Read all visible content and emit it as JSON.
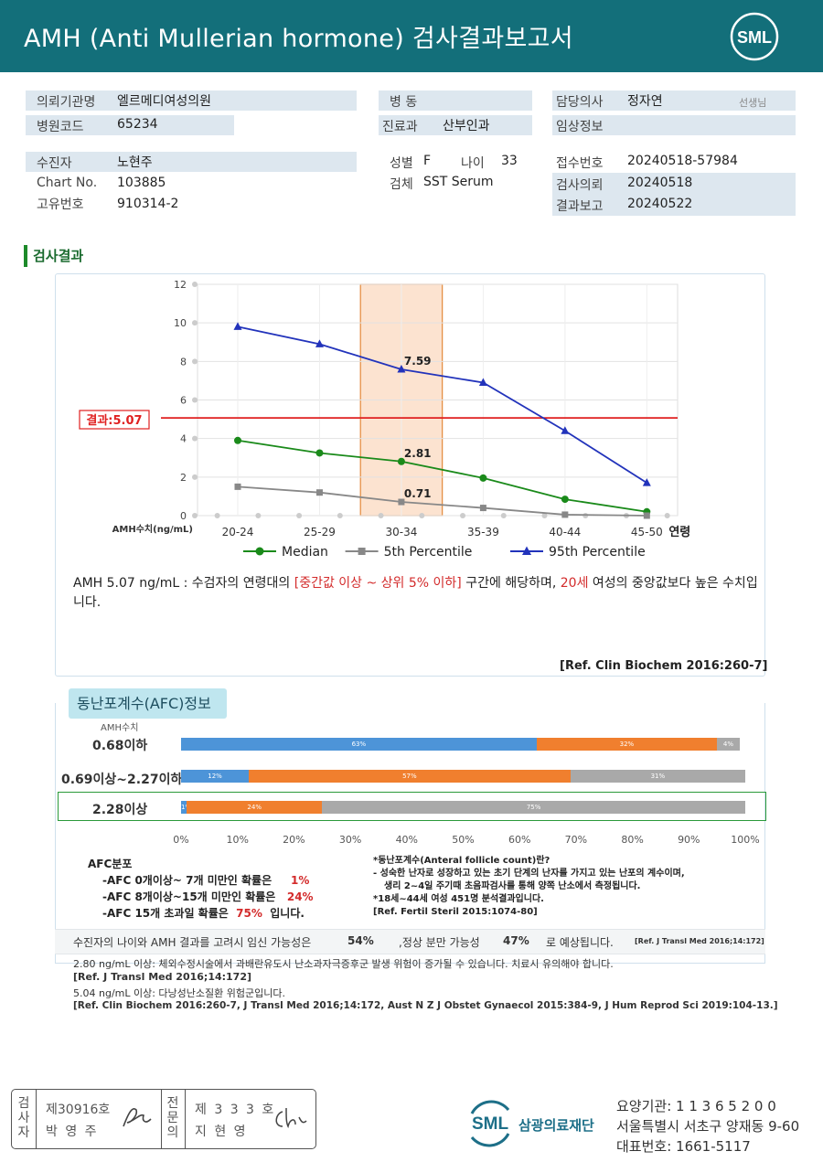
{
  "header": {
    "title": "AMH (Anti Mullerian hormone) 검사결과보고서",
    "logo_text": "SML"
  },
  "info": {
    "hospital_label": "의뢰기관명",
    "hospital_value": "엘르메디여성의원",
    "hospital_code_label": "병원코드",
    "hospital_code_value": "65234",
    "ward_label": "병 동",
    "dept_label": "진료과",
    "dept_value": "산부인과",
    "doctor_label": "담당의사",
    "doctor_value": "정자연",
    "doctor_suffix": "선생님",
    "clinical_label": "임상정보",
    "patient_label": "수진자",
    "patient_value": "노현주",
    "chart_label": "Chart No.",
    "chart_value": "103885",
    "id_label": "고유번호",
    "id_value": "910314-2",
    "sex_label": "성별",
    "sex_value": "F",
    "age_label": "나이",
    "age_value": "33",
    "specimen_label": "검체",
    "specimen_value": "SST Serum",
    "receipt_label": "접수번호",
    "receipt_value": "20240518-57984",
    "request_label": "검사의뢰",
    "request_value": "20240518",
    "report_label": "결과보고",
    "report_value": "20240522"
  },
  "section_title": "검사결과",
  "chart_data": {
    "type": "line",
    "categories": [
      "20-24",
      "25-29",
      "30-34",
      "35-39",
      "40-44",
      "45-50"
    ],
    "xlabel": "연령",
    "ylabel": "AMH수치(ng/mL)",
    "ylim": [
      0,
      12
    ],
    "yticks": [
      0,
      2,
      4,
      6,
      8,
      10,
      12
    ],
    "series": [
      {
        "name": "Median",
        "color": "#1a8a1a",
        "marker": "circle",
        "values": [
          3.9,
          3.25,
          2.81,
          1.95,
          0.85,
          0.2
        ]
      },
      {
        "name": "5th Percentile",
        "color": "#888888",
        "marker": "square",
        "values": [
          1.5,
          1.2,
          0.71,
          0.4,
          0.05,
          0.0
        ]
      },
      {
        "name": "95th Percentile",
        "color": "#2233bb",
        "marker": "triangle",
        "values": [
          9.8,
          8.9,
          7.59,
          6.9,
          4.4,
          1.7
        ]
      }
    ],
    "annotations": [
      {
        "series": 2,
        "index": 2,
        "text": "7.59"
      },
      {
        "series": 0,
        "index": 2,
        "text": "2.81"
      },
      {
        "series": 1,
        "index": 2,
        "text": "0.71"
      }
    ],
    "highlight_category": "30-34",
    "result_line": {
      "value": 5.07,
      "label": "결과:5.07",
      "color": "#e02020"
    },
    "grid": true,
    "legend": "bottom"
  },
  "interpretation": {
    "part1": "AMH 5.07 ng/mL : 수검자의 연령대의 ",
    "part2": "[중간값 이상 ~ 상위 5% 이하]",
    "part3": " 구간에 해당하며, ",
    "part4": "20세",
    "part5": " 여성의 중앙값보다 높은 수치입니다."
  },
  "ref1": "[Ref. Clin Biochem 2016:260-7]",
  "afc": {
    "title": "동난포계수(AFC)정보",
    "amh_label": "AMH수치",
    "rows": [
      {
        "label": "0.68이하",
        "segments": [
          {
            "value": 63,
            "text": "63%",
            "color": "#4d94d8"
          },
          {
            "value": 32,
            "text": "32%",
            "color": "#f07f2e"
          },
          {
            "value": 4,
            "text": "4%",
            "color": "#a9a9a9"
          }
        ]
      },
      {
        "label": "0.69이상~2.27이하",
        "segments": [
          {
            "value": 12,
            "text": "12%",
            "color": "#4d94d8"
          },
          {
            "value": 57,
            "text": "57%",
            "color": "#f07f2e"
          },
          {
            "value": 31,
            "text": "31%",
            "color": "#a9a9a9"
          }
        ]
      },
      {
        "label": "2.28이상",
        "segments": [
          {
            "value": 1,
            "text": "1%",
            "color": "#4d94d8"
          },
          {
            "value": 24,
            "text": "24%",
            "color": "#f07f2e"
          },
          {
            "value": 75,
            "text": "75%",
            "color": "#a9a9a9"
          }
        ]
      }
    ],
    "axis_ticks": [
      "0%",
      "10%",
      "20%",
      "30%",
      "40%",
      "50%",
      "60%",
      "70%",
      "80%",
      "90%",
      "100%"
    ],
    "dist_title": "AFC분포",
    "dist_rows": [
      {
        "text": "-AFC 0개이상~ 7개 미만인 확률은",
        "value": "1%",
        "suffix": ""
      },
      {
        "text": "-AFC 8개이상~15개 미만인 확률은",
        "value": "24%",
        "suffix": ""
      },
      {
        "text": "-AFC 15개 초과일 확률은",
        "value": "75%",
        "suffix": "입니다."
      }
    ],
    "def_lines": [
      "*동난포계수(Anteral follicle count)란?",
      "- 성숙한 난자로 성장하고 있는 초기 단계의 난자를 가지고 있는 난포의 계수이며,",
      "  생리 2~4일 주기때 초음파검사를 통해 양쪽 난소에서 측정됩니다.",
      "*18세~44세 여성 451명 분석결과입니다.",
      "[Ref. Fertil Steril 2015:1074-80]"
    ]
  },
  "pregnancy": {
    "text1": "수진자의 나이와 AMH 결과를 고려시 임신 가능성은",
    "value1": "54%",
    "text2": ",정상 분만 가능성",
    "value2": "47%",
    "text3": "로 예상됩니다.",
    "ref": "[Ref. J Transl Med 2016;14:172]"
  },
  "footnotes": [
    "2.80  ng/mL  이상: 체외수정시술에서 과배란유도시 난소과자극증후군 발생 위험이 증가될 수 있습니다. 치료시 유의해야 합니다.",
    "[Ref. J Transl Med 2016;14:172]",
    "5.04  ng/mL  이상: 다낭성난소질환 위험군입니다.",
    "[Ref. Clin Biochem 2016:260-7, J Transl Med 2016;14:172, Aust N Z J Obstet Gynaecol 2015:384-9, J Hum Reprod Sci 2019:104-13.]"
  ],
  "signature": {
    "tester_label": "검사자",
    "tester_no": "제30916호",
    "tester_name": "박 영 주",
    "specialist_label": "전문의",
    "specialist_no": "제 3 3 3 호",
    "specialist_name": "지 현 영"
  },
  "org": {
    "logo_text": "SML",
    "name": "삼광의료재단",
    "code": "요양기관: 1 1 3 6 5 2 0 0",
    "address": "서울특별시 서초구 양재동 9-60",
    "phone": "대표번호: 1661-5117"
  }
}
